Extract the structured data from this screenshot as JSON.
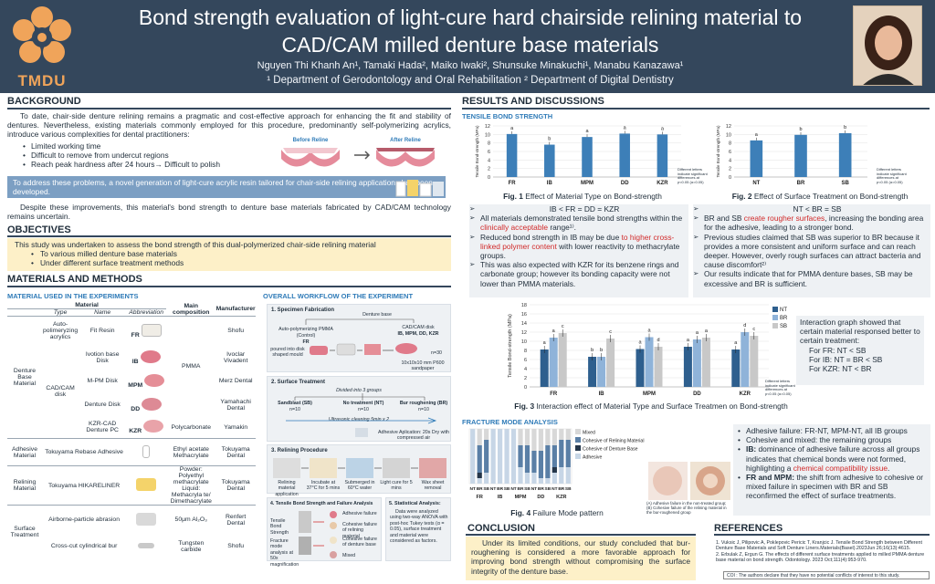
{
  "header": {
    "title_line1": "Bond strength evaluation of light-cure hard chairside relining material to",
    "title_line2": "CAD/CAM milled denture base materials",
    "authors": "Nguyen Thi Khanh An¹, Tamaki Hada², Maiko Iwaki², Shunsuke Minakuchi¹, Manabu Kanazawa¹",
    "affiliations": "¹ Department of Gerodontology and Oral Rehabilitation ² Department of Digital Dentistry",
    "logo_text": "TMDU"
  },
  "background": {
    "heading": "BACKGROUND",
    "para1": "To date, chair-side denture relining remains a pragmatic and cost-effective approach for enhancing the fit and stability of dentures. Nevertheless, existing materials commonly employed for this procedure, predominantly self-polymerizing acrylics, introduce various complexities for dental practitioners:",
    "list": [
      "Limited working time",
      "Difficult to remove from undercut regions",
      "Reach peak hardness after 24 hours→ Difficult to polish"
    ],
    "before_label": "Before Reline",
    "after_label": "After Reline",
    "band": "To address these problems, a novel generation of light-cure acrylic resin tailored for chair-side relining applications has been developed.",
    "para2": "Despite these improvements, this material's bond strength to denture base materials fabricated by CAD/CAM technology remains uncertain."
  },
  "objectives": {
    "heading": "OBJECTIVES",
    "text": "This study was undertaken to assess the bond strength of this dual-polymerized chair-side relining material",
    "list": [
      "To various milled denture base materials",
      "Under different surface treatment methods"
    ]
  },
  "materials": {
    "heading": "MATERIALS AND METHODS",
    "table_title": "MATERIAL USED IN THE EXPERIMENTS",
    "col_material": "Material",
    "col_main": "Main composition",
    "col_manufacturer": "Manufacturer",
    "col_type": "Type",
    "col_name": "Name",
    "col_abbr": "Abbreviation",
    "group_denture": "Denture Base Material",
    "auto_type": "Auto-polimeryzing acrylics",
    "cadcam_type": "CAD/CAM disk",
    "rows": [
      {
        "name": "Fit Resin",
        "abbr": "FR",
        "manu": "Shofu"
      },
      {
        "name": "Ivotion base Disk",
        "abbr": "IB",
        "manu": "Ivoclar Vivadent"
      },
      {
        "name": "M-PM Disk",
        "abbr": "MPM",
        "manu": "Merz Dental"
      },
      {
        "name": "Denture Disk",
        "abbr": "DD",
        "manu": "Yamahachi Dental"
      },
      {
        "name": "KZR-CAD Denture PC",
        "abbr": "KZR",
        "comp": "Polycarbonate",
        "manu": "Yamakin"
      }
    ],
    "pmma": "PMMA",
    "adhesive_group": "Adhesive Material",
    "adhesive_name": "Tokuyama Rebase Adhesive",
    "adhesive_comp": "Ethyl acetate Methacrylate",
    "adhesive_manu": "Tokuyama Dental",
    "relining_group": "Relining Material",
    "relining_name": "Tokuyama HIKARELINER",
    "relining_comp": "Powder: Polyethyl methacrylate Liquid: Methacryla te/ Dimethacrylate",
    "relining_manu": "Tokuyama Dental",
    "surface_group": "Surface Treatment",
    "surface_name1": "Airborne-particle abrasion",
    "surface_comp1": "50μm Al₂O₃",
    "surface_manu1": "Renfert Dental",
    "surface_name2": "Cross-cut cylindrical bur",
    "surface_comp2": "Tungsten carbide",
    "surface_manu2": "Shofu"
  },
  "workflow": {
    "title": "OVERALL WORKFLOW OF THE EXPERIMENT",
    "p1_title": "1. Specimen Fabrication",
    "p1_denture": "Denture base",
    "p1_auto": "Auto-polymerizing PMMA",
    "p1_control": "(Control)",
    "p1_fr": "FR",
    "p1_fr_sub": "poured into disk shaped mould",
    "p1_cad": "CAD/CAM disk",
    "p1_cad_list": "IB, MPM, DD, KZR",
    "p1_n": "n=30",
    "p1_note": "10x10x10 mm P600 sandpaper",
    "p2_title": "2. Surface Treatment",
    "p2_divided": "Divided into 3 groups",
    "p2_sb": "Sandblast (SB)",
    "p2_nt": "No treatment (NT)",
    "p2_br": "Bur roughening (BR)",
    "p2_n": "n=10",
    "p2_ultra": "Ultrasonic cleaning 5min x 2",
    "p2_adh": "Adhesive Aplication: 20s Dry with compressed air",
    "p3_title": "3. Relining Procedure",
    "p3_steps": [
      "Relining material application",
      "Incubate at 37°C for 5 mins",
      "Submerged in 60°C water",
      "Light cure for 5 mins",
      "Wax sheet removal"
    ],
    "p4_title": "4. Tensile Bond Strength and Failure Analysis",
    "p4_tbs": "Tensile Bond Strength",
    "p4_fm": "Fracture mode analysis at 50x magnification",
    "p4_adh": "Adhesive failure",
    "p4_coh": "Cohesive failure of relining material",
    "p4_cohb": "Cohesive failure of denture base",
    "p4_mixed": "Mixed",
    "p5_title": "5. Statistical Analysis:",
    "p5_text": "Data were analyzed using two-way ANOVA with post-hoc Tukey tests (α = 0.05), surface treatment and material were considered as factors."
  },
  "results": {
    "heading": "RESULTS AND DISCUSSIONS",
    "tbs_title": "TENSILE BOND STRENGTH",
    "fig1_caption_bold": "Fig. 1",
    "fig1_caption": " Effect of Material Type on Bond-strength",
    "fig2_caption_bold": "Fig. 2",
    "fig2_caption": " Effect of Surface Treatment on Bond-strength",
    "note": "Different letters indicate significant differences at p<0.05 (α=0.05)",
    "left_box": {
      "title": "IB < FR = DD = KZR",
      "b1a": "All materials demonstrated tensile bond strengths within the ",
      "b1red": "clinically acceptable",
      "b1b": " range¹⁾.",
      "b2a": "Reduced bond strength in IB may be due ",
      "b2red": "to higher cross-linked polymer content",
      "b2b": " with lower reactivity to methacrylate groups.",
      "b3": "This was also expected with KZR for its benzene rings and carbonate group; however its bonding capacity were not lower than PMMA materials."
    },
    "right_box": {
      "title": "NT < BR = SB",
      "b1a": "BR and SB ",
      "b1red": "create rougher surfaces",
      "b1b": ", increasing the bonding area for the adhesive, leading to a stronger bond.",
      "b2": "Previous studies claimed that SB was superior to BR because it provides a more consistent and uniform surface and can reach deeper. However, overly rough surfaces can attract bacteria and cause discomfort²⁾",
      "b3": "Our results indicate that for PMMA denture bases, SB may be excessive and BR is sufficient."
    },
    "fig3_caption_bold": "Fig. 3",
    "fig3_caption": " Interaction effect of Material Type and Surface Treatmen on Bond-strength",
    "interaction": {
      "text": "Interaction graph showed that certain material responsed better to certain treatment:",
      "list": [
        "For FR: NT < SB",
        "For IB: NT = BR < SB",
        "For KZR: NT < BR"
      ]
    },
    "fm_title": "FRACTURE MODE ANALYSIS",
    "fig4_caption_bold": "Fig. 4",
    "fig4_caption": " Failure Mode pattern",
    "fm_img_caption": "(A) Adhesive failure in the non-treated group; (B) Cohesive failure of the relining material in the bur-roughened group",
    "fm_box": {
      "l1": "Adhesive failure: FR-NT, MPM-NT, all IB groups",
      "l2": "Cohesive and mixed: the remaining groups",
      "l3a": "IB:",
      "l3b": " dominance of adhesive failure across all groups indicates that chemical bonds were not formed, highlighting a ",
      "l3red": "chemical compatibility issue",
      "l3c": ".",
      "l4a": "FR and MPM:",
      "l4b": " the shift from adhesive to cohesive or mixed failure in specimen with BR and SB reconfirmed the effect of surface treatments."
    }
  },
  "conclusion": {
    "heading": "CONCLUSION",
    "text": "Under its limited conditions, our study concluded that bur-roughening is considered a more favorable approach for improving bond strength without compromising the surface integrity of the denture base."
  },
  "references": {
    "heading": "REFERENCES",
    "items": [
      "1. Vuksic J, Pilipovic A, Poklepovic Pericic T, Kranjcic J. Tensile Bond Strength between Different Denture Base Materials and Soft Denture Liners.Materials(Basel).2023Jun 26;16(13):4615.",
      "2. Erbulak Z, Ergun G. The effects of different surface treatments applied to milled PMMA denture base material on bond strength. Odontology. 2023 Oct;111(4):953-970."
    ],
    "coi": "COI : The authors declare that they have no potential conflicts of interest to this study."
  },
  "colors": {
    "header": "#34475c",
    "bar": "#3d7fb8",
    "nt": "#2e5f8e",
    "br": "#8fb3d9",
    "sb": "#c8c8c8",
    "accent_red": "#d12a2a",
    "objective_bg": "#fdf0c8"
  },
  "chart_data": [
    {
      "type": "bar",
      "categories": [
        "FR",
        "IB",
        "MPM",
        "DD",
        "KZR"
      ],
      "values": [
        10.1,
        7.6,
        9.4,
        10.2,
        10.0
      ],
      "letters": [
        "a",
        "b",
        "a",
        "a",
        "a"
      ],
      "ylabel": "Tensile Bond-strength (MPa)",
      "ylim": [
        0,
        12
      ],
      "yticks": [
        0,
        2,
        4,
        6,
        8,
        10,
        12
      ]
    },
    {
      "type": "bar",
      "categories": [
        "NT",
        "BR",
        "SB"
      ],
      "values": [
        8.6,
        9.9,
        10.3
      ],
      "letters": [
        "a",
        "b",
        "b"
      ],
      "ylabel": "Tensile Bond-strength (MPa)",
      "ylim": [
        0,
        12
      ],
      "yticks": [
        0,
        2,
        4,
        6,
        8,
        10,
        12
      ]
    },
    {
      "type": "bar",
      "categories": [
        "FR",
        "IB",
        "MPM",
        "DD",
        "KZR"
      ],
      "series": [
        {
          "name": "NT",
          "values": [
            8.2,
            6.6,
            8.3,
            8.8,
            8.2
          ]
        },
        {
          "name": "BR",
          "values": [
            10.8,
            6.6,
            10.9,
            10.4,
            12.0
          ]
        },
        {
          "name": "SB",
          "values": [
            11.8,
            10.6,
            8.8,
            10.8,
            11.2
          ]
        }
      ],
      "letters": [
        [
          "a",
          "a",
          "c"
        ],
        [
          "b",
          "b",
          "c"
        ],
        [
          "a",
          "a",
          "d"
        ],
        [
          "a",
          "a",
          "a"
        ],
        [
          "a",
          "d",
          "c"
        ]
      ],
      "ylabel": "Tensile Bond-strength (MPa)",
      "ylim": [
        0,
        18
      ],
      "yticks": [
        0,
        2,
        4,
        6,
        8,
        10,
        12,
        14,
        16,
        18
      ],
      "legend": "right"
    },
    {
      "type": "bar",
      "stacked": true,
      "groups": [
        "FR",
        "IB",
        "MPM",
        "DD",
        "KZR"
      ],
      "categories": [
        "NT",
        "BR",
        "SB",
        "NT",
        "BR",
        "SB",
        "NT",
        "BR",
        "SB",
        "NT",
        "BR",
        "SB",
        "NT",
        "BR",
        "SB"
      ],
      "series": [
        {
          "name": "Mixed",
          "values": [
            0,
            0.3,
            0.2,
            0,
            0,
            0,
            0,
            0.3,
            0.3,
            0.4,
            0.4,
            0.3,
            0.3,
            0.2,
            0.2
          ]
        },
        {
          "name": "Cohesive of Relining Material",
          "values": [
            0,
            0.5,
            0.6,
            0,
            0,
            0,
            0,
            0.4,
            0.5,
            0.4,
            0.5,
            0.6,
            0.4,
            0.5,
            0.5
          ]
        },
        {
          "name": "Cohesive of Denture Base",
          "values": [
            0,
            0.1,
            0,
            0,
            0,
            0,
            0,
            0,
            0,
            0,
            0,
            0,
            0.1,
            0,
            0
          ]
        },
        {
          "name": "Adhesive",
          "values": [
            1,
            0.1,
            0.2,
            1,
            1,
            1,
            1,
            0.3,
            0.2,
            0.2,
            0.1,
            0.1,
            0.2,
            0.3,
            0.3
          ]
        }
      ],
      "legend": "right"
    }
  ]
}
